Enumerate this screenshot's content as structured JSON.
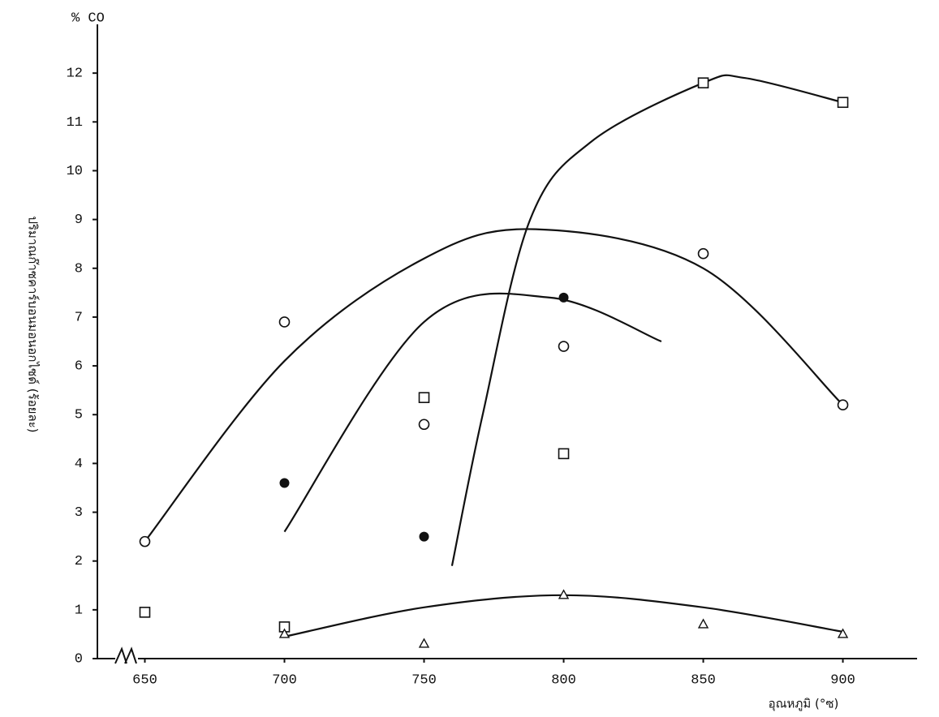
{
  "chart_data": {
    "type": "scatter",
    "y_unit": "% CO",
    "y_label": "ปริมาณก๊าซคาร์บอนมอนอกไซด์ (ร้อยละ)",
    "x_label": "อุณหภูมิ (°ซ)",
    "xlim": [
      633,
      926
    ],
    "ylim": [
      0,
      13
    ],
    "xticks": [
      650,
      700,
      750,
      800,
      850,
      900
    ],
    "yticks": [
      0,
      1,
      2,
      3,
      4,
      5,
      6,
      7,
      8,
      9,
      10,
      11,
      12
    ],
    "series": [
      {
        "marker": "circle",
        "color": "#111",
        "x": [
          650,
          700,
          750,
          800,
          850,
          900
        ],
        "values": [
          2.4,
          6.9,
          4.8,
          6.4,
          8.3,
          5.2
        ]
      },
      {
        "marker": "dot",
        "color": "#111",
        "x": [
          700,
          750,
          800
        ],
        "values": [
          3.6,
          2.5,
          7.4
        ]
      },
      {
        "marker": "square",
        "color": "#111",
        "x": [
          650,
          700,
          750,
          800,
          850,
          900
        ],
        "values": [
          0.95,
          0.65,
          5.35,
          4.2,
          11.8,
          11.4
        ]
      },
      {
        "marker": "triangle",
        "color": "#111",
        "x": [
          700,
          750,
          800,
          850,
          900
        ],
        "values": [
          0.5,
          0.3,
          1.3,
          0.7,
          0.5
        ]
      }
    ],
    "curves": [
      {
        "x": [
          650,
          700,
          750,
          790,
          850,
          900
        ],
        "values": [
          2.4,
          6.1,
          8.2,
          8.8,
          8.0,
          5.2
        ]
      },
      {
        "x": [
          700,
          750,
          795,
          835
        ],
        "values": [
          2.6,
          6.9,
          7.4,
          6.5
        ]
      },
      {
        "x": [
          760,
          771,
          788,
          810,
          850,
          865,
          900
        ],
        "values": [
          1.9,
          5.0,
          9.0,
          10.6,
          11.8,
          11.9,
          11.4
        ]
      },
      {
        "x": [
          700,
          750,
          800,
          850,
          900
        ],
        "values": [
          0.45,
          1.05,
          1.3,
          1.05,
          0.55
        ]
      }
    ]
  }
}
